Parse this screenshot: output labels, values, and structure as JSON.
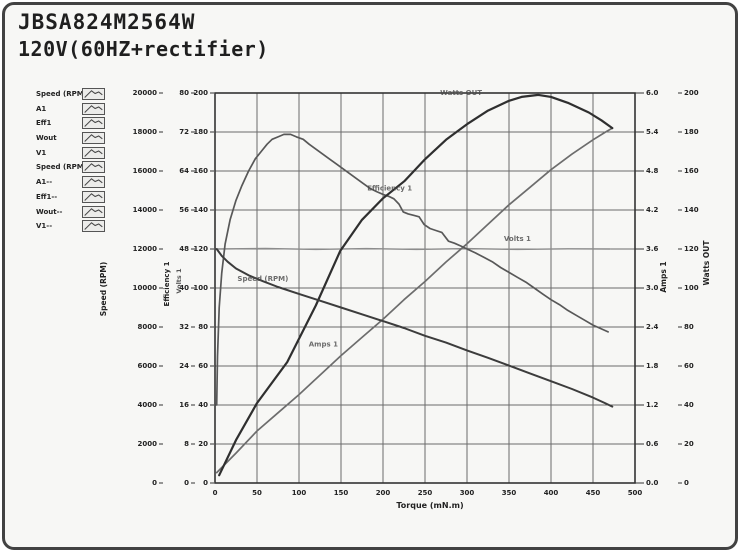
{
  "header": {
    "model": "JBSA824M2564W",
    "condition": "120V(60HZ+rectifier)"
  },
  "legend": {
    "items": [
      {
        "label": "Speed (RPM"
      },
      {
        "label": "A1"
      },
      {
        "label": "Eff1"
      },
      {
        "label": "Wout"
      },
      {
        "label": "V1"
      },
      {
        "label": "Speed (RPM"
      },
      {
        "label": "A1--"
      },
      {
        "label": "Eff1--"
      },
      {
        "label": "Wout--"
      },
      {
        "label": "V1--"
      }
    ],
    "thumb_points": [
      [
        0.06,
        0.85
      ],
      [
        0.4,
        0.18
      ],
      [
        0.58,
        0.45
      ],
      [
        0.76,
        0.3
      ],
      [
        0.94,
        0.58
      ]
    ]
  },
  "chart_data": {
    "type": "line",
    "title": "JBSA824M2564W 120V(60HZ+rectifier)",
    "xlabel": "Torque (mN.m)",
    "x_range": [
      0,
      500
    ],
    "x_ticks": [
      0,
      50,
      100,
      150,
      200,
      250,
      300,
      350,
      400,
      450,
      500
    ],
    "grid": true,
    "axes": {
      "speed": {
        "label": "Speed (RPM)",
        "range": [
          0,
          20000
        ],
        "ticks": [
          "0",
          "2000",
          "4000",
          "6000",
          "8000",
          "10000",
          "12000",
          "14000",
          "16000",
          "18000",
          "20000"
        ]
      },
      "eff": {
        "label": "Efficiency 1",
        "range": [
          0,
          80
        ],
        "ticks": [
          "0",
          "8",
          "16",
          "24",
          "32",
          "40",
          "48",
          "56",
          "64",
          "72",
          "80"
        ]
      },
      "volts": {
        "label": "Volts 1",
        "range": [
          0,
          200
        ],
        "ticks": [
          "0",
          "20",
          "40",
          "60",
          "80",
          "100",
          "120",
          "140",
          "160",
          "180",
          "200"
        ]
      },
      "amps": {
        "label": "Amps 1",
        "range": [
          0,
          6
        ],
        "ticks": [
          "0.0",
          "0.6",
          "1.2",
          "1.8",
          "2.4",
          "3.0",
          "3.6",
          "4.2",
          "4.8",
          "5.4",
          "6.0"
        ]
      },
      "watts": {
        "label": "Watts OUT",
        "range": [
          0,
          200
        ],
        "ticks": [
          "0",
          "20",
          "40",
          "60",
          "80",
          "100",
          "120",
          "140",
          "160",
          "180",
          "200"
        ]
      }
    },
    "series": [
      {
        "id": "volts",
        "name": "V1",
        "axis": "volts",
        "color": "#8c8c8c",
        "width": 1.4,
        "points": [
          [
            2,
            120
          ],
          [
            60,
            120.3
          ],
          [
            120,
            119.8
          ],
          [
            180,
            120.2
          ],
          [
            240,
            119.8
          ],
          [
            300,
            120.2
          ],
          [
            360,
            119.8
          ],
          [
            420,
            120.1
          ],
          [
            470,
            120
          ]
        ]
      },
      {
        "id": "amps",
        "name": "A1",
        "axis": "amps",
        "color": "#6d6d6d",
        "width": 1.7,
        "points": [
          [
            2,
            0.16
          ],
          [
            25,
            0.46
          ],
          [
            50,
            0.8
          ],
          [
            75,
            1.08
          ],
          [
            100,
            1.36
          ],
          [
            125,
            1.66
          ],
          [
            150,
            1.96
          ],
          [
            175,
            2.24
          ],
          [
            200,
            2.52
          ],
          [
            225,
            2.82
          ],
          [
            250,
            3.1
          ],
          [
            275,
            3.4
          ],
          [
            300,
            3.68
          ],
          [
            325,
            3.98
          ],
          [
            350,
            4.28
          ],
          [
            375,
            4.55
          ],
          [
            400,
            4.82
          ],
          [
            425,
            5.06
          ],
          [
            450,
            5.28
          ],
          [
            465,
            5.4
          ],
          [
            473,
            5.46
          ]
        ]
      },
      {
        "id": "efficiency",
        "name": "Eff1",
        "axis": "eff",
        "color": "#585858",
        "width": 1.7,
        "points": [
          [
            2,
            16
          ],
          [
            3,
            26
          ],
          [
            5,
            36
          ],
          [
            8,
            43
          ],
          [
            12,
            49
          ],
          [
            18,
            54
          ],
          [
            25,
            58
          ],
          [
            32,
            61
          ],
          [
            40,
            64
          ],
          [
            48,
            66.5
          ],
          [
            55,
            68
          ],
          [
            62,
            69.5
          ],
          [
            68,
            70.5
          ],
          [
            75,
            71
          ],
          [
            82,
            71.5
          ],
          [
            90,
            71.5
          ],
          [
            97,
            71
          ],
          [
            105,
            70.5
          ],
          [
            112,
            69.5
          ],
          [
            120,
            68.5
          ],
          [
            128,
            67.5
          ],
          [
            136,
            66.5
          ],
          [
            144,
            65.5
          ],
          [
            152,
            64.5
          ],
          [
            160,
            63.5
          ],
          [
            168,
            62.5
          ],
          [
            176,
            61.5
          ],
          [
            184,
            60.5
          ],
          [
            192,
            59.8
          ],
          [
            200,
            59.2
          ],
          [
            207,
            58.8
          ],
          [
            213,
            58.3
          ],
          [
            219,
            57.2
          ],
          [
            224,
            55.6
          ],
          [
            230,
            55.2
          ],
          [
            237,
            54.9
          ],
          [
            243,
            54.6
          ],
          [
            249,
            53
          ],
          [
            256,
            52.2
          ],
          [
            263,
            51.8
          ],
          [
            270,
            51.4
          ],
          [
            278,
            49.6
          ],
          [
            285,
            49.2
          ],
          [
            293,
            48.6
          ],
          [
            300,
            48
          ],
          [
            310,
            47.2
          ],
          [
            320,
            46.3
          ],
          [
            330,
            45.4
          ],
          [
            340,
            44.2
          ],
          [
            350,
            43.2
          ],
          [
            360,
            42.2
          ],
          [
            370,
            41.2
          ],
          [
            380,
            40
          ],
          [
            390,
            38.8
          ],
          [
            400,
            37.6
          ],
          [
            410,
            36.6
          ],
          [
            420,
            35.4
          ],
          [
            430,
            34.4
          ],
          [
            440,
            33.4
          ],
          [
            450,
            32.4
          ],
          [
            460,
            31.6
          ],
          [
            468,
            31
          ]
        ]
      },
      {
        "id": "watts",
        "name": "Wout",
        "axis": "watts",
        "color": "#2f2f2f",
        "width": 2.2,
        "points": [
          [
            5,
            4
          ],
          [
            25,
            22
          ],
          [
            50,
            41
          ],
          [
            86,
            62
          ],
          [
            120,
            91
          ],
          [
            149,
            119
          ],
          [
            175,
            135
          ],
          [
            200,
            146
          ],
          [
            226,
            155
          ],
          [
            250,
            166
          ],
          [
            275,
            176
          ],
          [
            300,
            184
          ],
          [
            325,
            191
          ],
          [
            350,
            196
          ],
          [
            365,
            198
          ],
          [
            385,
            199
          ],
          [
            400,
            198
          ],
          [
            420,
            195
          ],
          [
            445,
            190
          ],
          [
            460,
            186
          ],
          [
            473,
            182
          ]
        ]
      },
      {
        "id": "speed",
        "name": "Speed (RPM)",
        "axis": "speed",
        "color": "#3c3c3c",
        "width": 2,
        "points": [
          [
            2,
            12000
          ],
          [
            8,
            11650
          ],
          [
            15,
            11350
          ],
          [
            25,
            11000
          ],
          [
            40,
            10650
          ],
          [
            57,
            10350
          ],
          [
            75,
            10050
          ],
          [
            100,
            9700
          ],
          [
            125,
            9350
          ],
          [
            150,
            9000
          ],
          [
            175,
            8650
          ],
          [
            200,
            8300
          ],
          [
            225,
            7950
          ],
          [
            250,
            7550
          ],
          [
            275,
            7200
          ],
          [
            300,
            6800
          ],
          [
            325,
            6420
          ],
          [
            350,
            6020
          ],
          [
            375,
            5620
          ],
          [
            400,
            5220
          ],
          [
            425,
            4820
          ],
          [
            450,
            4380
          ],
          [
            465,
            4080
          ],
          [
            473,
            3920
          ]
        ]
      }
    ],
    "annotations": [
      {
        "text": "Watts OUT",
        "t": 293,
        "v": 199,
        "axis": "watts"
      },
      {
        "text": "Efficiency 1",
        "t": 208,
        "v": 60,
        "axis": "eff"
      },
      {
        "text": "Volts 1",
        "t": 360,
        "v": 124,
        "axis": "volts"
      },
      {
        "text": "Speed (RPM)",
        "t": 57,
        "v": 10350,
        "axis": "speed"
      },
      {
        "text": "Amps 1",
        "t": 129,
        "v": 2.1,
        "axis": "amps"
      }
    ],
    "legend_position": "left"
  },
  "colors": {
    "frame": "#424242",
    "paper": "#f7f7f5",
    "grid": "#6b6b6b",
    "plot_border": "#333333",
    "tick_text": "#222222",
    "annotation_text": "#4a4a4a"
  }
}
